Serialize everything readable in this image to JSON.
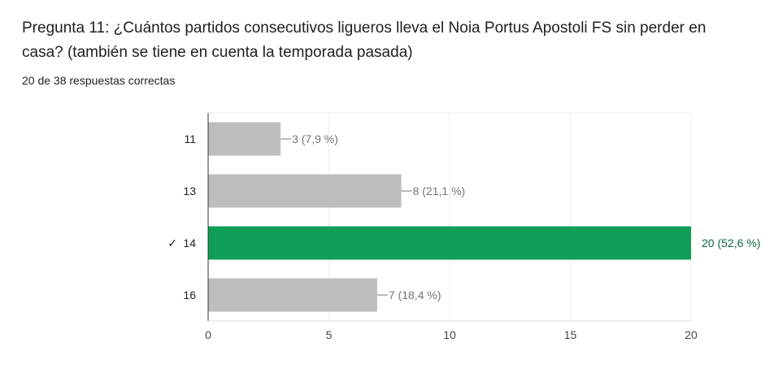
{
  "question": {
    "title": "Pregunta 11: ¿Cuántos partidos consecutivos ligueros lleva el Noia Portus Apostoli FS sin perder en casa? (también se tiene en cuenta la temporada pasada)",
    "summary": "20 de 38 respuestas correctas"
  },
  "colors": {
    "correct": "#0f9d58",
    "incorrect": "#bdbdbd",
    "label_incorrect": "#757575",
    "label_correct": "#0b6b3c",
    "grid": "#eeeeee",
    "axis": "#333333"
  },
  "chart_data": {
    "type": "bar",
    "orientation": "horizontal",
    "categories": [
      "11",
      "13",
      "14",
      "16"
    ],
    "values": [
      3,
      8,
      20,
      7
    ],
    "data_labels": [
      "3 (7,9 %)",
      "8 (21,1 %)",
      "20 (52,6 %)",
      "7 (18,4 %)"
    ],
    "correct": [
      false,
      false,
      true,
      false
    ],
    "correct_mark": "✓",
    "xlim": [
      0,
      20
    ],
    "xticks": [
      0,
      5,
      10,
      15,
      20
    ],
    "grid": true
  }
}
